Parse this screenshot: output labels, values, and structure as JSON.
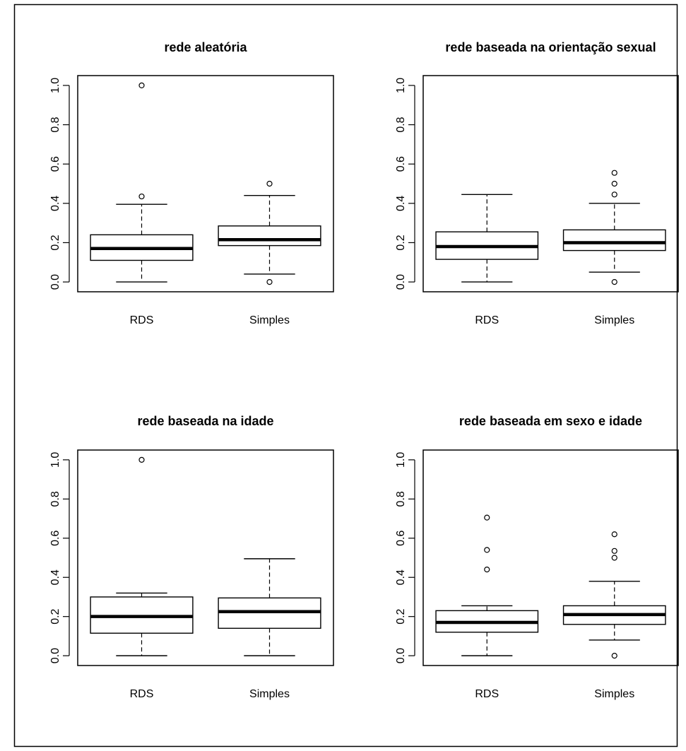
{
  "chart_data": [
    {
      "type": "box",
      "title": "rede aleatória",
      "categories": [
        "RDS",
        "Simples"
      ],
      "ylim": [
        -0.05,
        1.05
      ],
      "yticks": [
        "0.0",
        "0.2",
        "0.4",
        "0.6",
        "0.8",
        "1.0"
      ],
      "boxes": [
        {
          "category": "RDS",
          "whisker_low": 0.0,
          "q1": 0.11,
          "median": 0.17,
          "q3": 0.24,
          "whisker_high": 0.395,
          "outliers": [
            0.435,
            1.0
          ]
        },
        {
          "category": "Simples",
          "whisker_low": 0.04,
          "q1": 0.185,
          "median": 0.215,
          "q3": 0.285,
          "whisker_high": 0.44,
          "outliers": [
            0.0,
            0.5
          ]
        }
      ]
    },
    {
      "type": "box",
      "title": "rede baseada na orientação sexual",
      "categories": [
        "RDS",
        "Simples"
      ],
      "ylim": [
        -0.05,
        1.05
      ],
      "yticks": [
        "0.0",
        "0.2",
        "0.4",
        "0.6",
        "0.8",
        "1.0"
      ],
      "boxes": [
        {
          "category": "RDS",
          "whisker_low": 0.0,
          "q1": 0.115,
          "median": 0.18,
          "q3": 0.255,
          "whisker_high": 0.445,
          "outliers": []
        },
        {
          "category": "Simples",
          "whisker_low": 0.05,
          "q1": 0.16,
          "median": 0.2,
          "q3": 0.265,
          "whisker_high": 0.4,
          "outliers": [
            0.0,
            0.445,
            0.5,
            0.555
          ]
        }
      ]
    },
    {
      "type": "box",
      "title": "rede baseada na idade",
      "categories": [
        "RDS",
        "Simples"
      ],
      "ylim": [
        -0.05,
        1.05
      ],
      "yticks": [
        "0.0",
        "0.2",
        "0.4",
        "0.6",
        "0.8",
        "1.0"
      ],
      "boxes": [
        {
          "category": "RDS",
          "whisker_low": 0.0,
          "q1": 0.115,
          "median": 0.2,
          "q3": 0.3,
          "whisker_high": 0.32,
          "outliers": [
            1.0
          ]
        },
        {
          "category": "Simples",
          "whisker_low": 0.0,
          "q1": 0.14,
          "median": 0.225,
          "q3": 0.295,
          "whisker_high": 0.495,
          "outliers": []
        }
      ]
    },
    {
      "type": "box",
      "title": "rede baseada em sexo e idade",
      "categories": [
        "RDS",
        "Simples"
      ],
      "ylim": [
        -0.05,
        1.05
      ],
      "yticks": [
        "0.0",
        "0.2",
        "0.4",
        "0.6",
        "0.8",
        "1.0"
      ],
      "boxes": [
        {
          "category": "RDS",
          "whisker_low": 0.0,
          "q1": 0.12,
          "median": 0.17,
          "q3": 0.23,
          "whisker_high": 0.255,
          "outliers": [
            0.44,
            0.54,
            0.705
          ]
        },
        {
          "category": "Simples",
          "whisker_low": 0.08,
          "q1": 0.16,
          "median": 0.21,
          "q3": 0.255,
          "whisker_high": 0.38,
          "outliers": [
            0.0,
            0.5,
            0.535,
            0.62
          ]
        }
      ]
    }
  ]
}
